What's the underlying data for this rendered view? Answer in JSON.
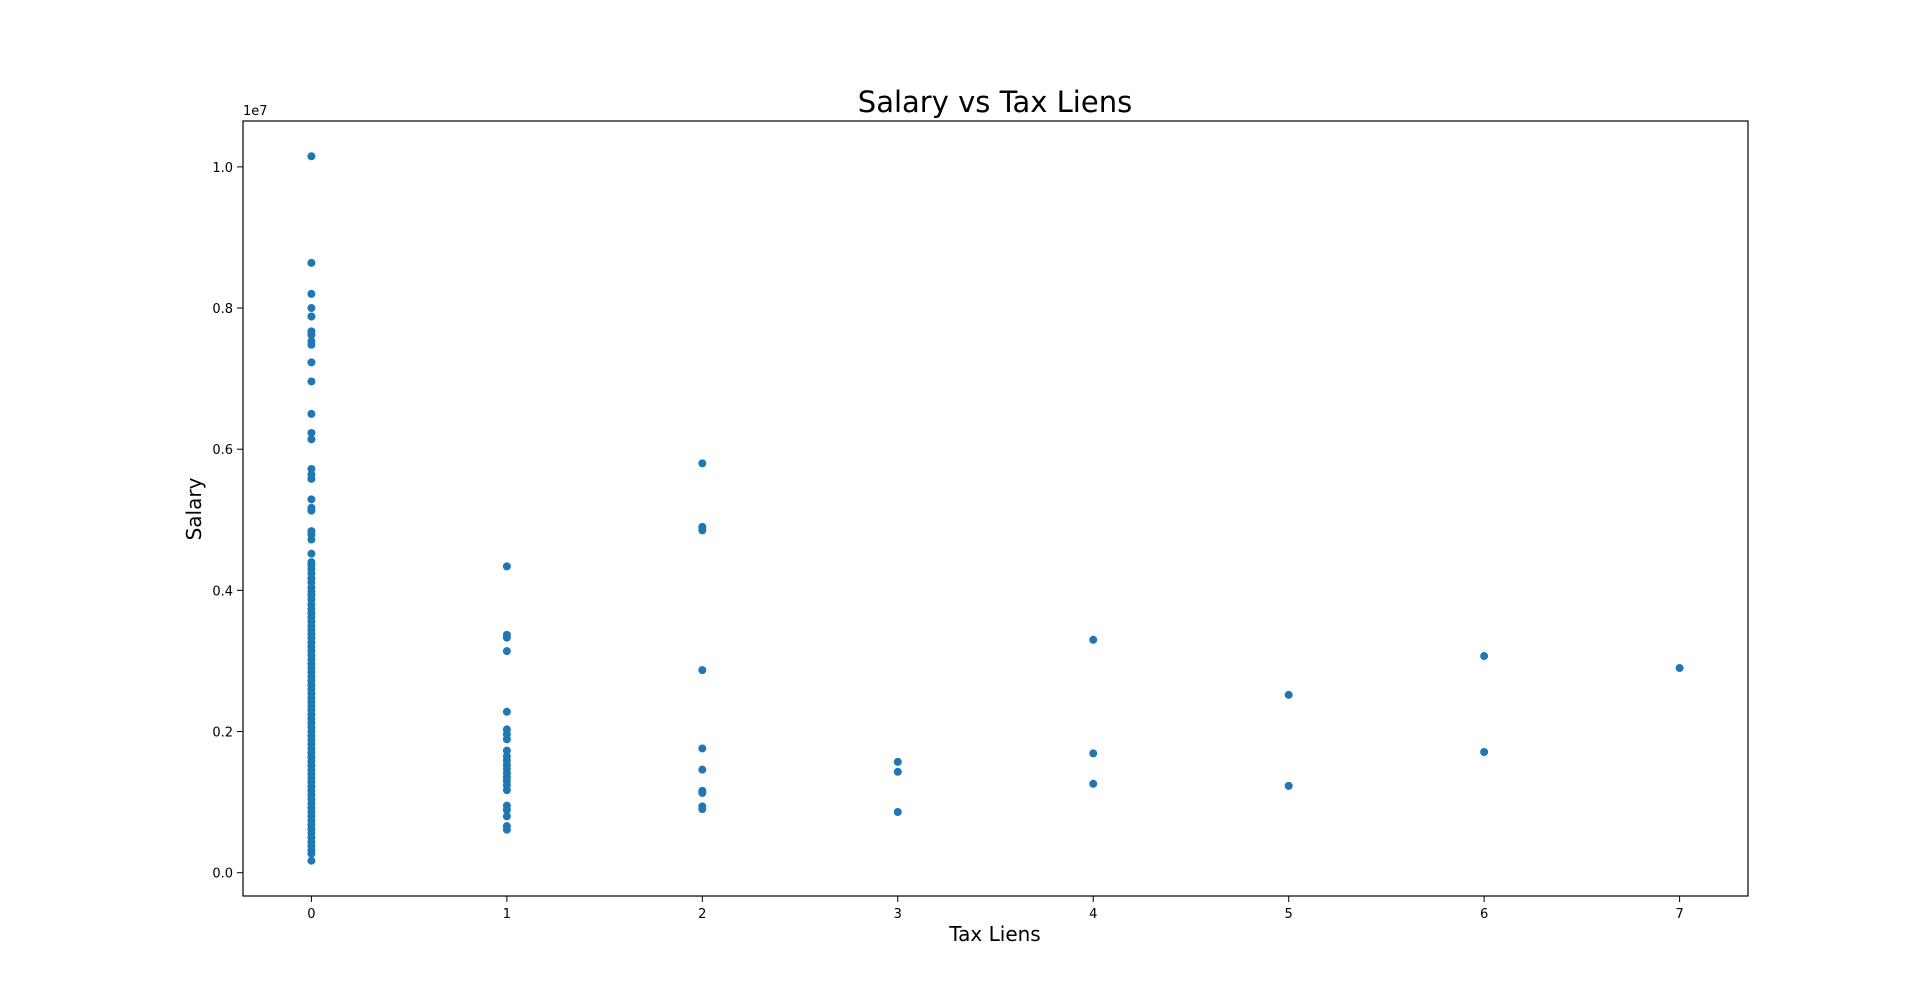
{
  "chart_data": {
    "type": "scatter",
    "title": "Salary vs Tax Liens",
    "xlabel": "Tax Liens",
    "ylabel": "Salary",
    "y_offset_text": "1e7",
    "xlim": [
      -0.35,
      7.35
    ],
    "ylim": [
      -330000,
      10650000
    ],
    "x_ticks": [
      0,
      1,
      2,
      3,
      4,
      5,
      6,
      7
    ],
    "x_tick_labels": [
      "0",
      "1",
      "2",
      "3",
      "4",
      "5",
      "6",
      "7"
    ],
    "y_ticks": [
      0,
      2000000,
      4000000,
      6000000,
      8000000,
      10000000
    ],
    "y_tick_labels": [
      "0.0",
      "0.2",
      "0.4",
      "0.6",
      "0.8",
      "1.0"
    ],
    "grid": false,
    "marker_color": "#1f77b4",
    "points": [
      {
        "x": 0,
        "y": 10150000
      },
      {
        "x": 0,
        "y": 8640000
      },
      {
        "x": 0,
        "y": 8200000
      },
      {
        "x": 0,
        "y": 8000000
      },
      {
        "x": 0,
        "y": 7880000
      },
      {
        "x": 0,
        "y": 7670000
      },
      {
        "x": 0,
        "y": 7620000
      },
      {
        "x": 0,
        "y": 7530000
      },
      {
        "x": 0,
        "y": 7480000
      },
      {
        "x": 0,
        "y": 7230000
      },
      {
        "x": 0,
        "y": 6960000
      },
      {
        "x": 0,
        "y": 6500000
      },
      {
        "x": 0,
        "y": 6230000
      },
      {
        "x": 0,
        "y": 6140000
      },
      {
        "x": 0,
        "y": 5720000
      },
      {
        "x": 0,
        "y": 5640000
      },
      {
        "x": 0,
        "y": 5580000
      },
      {
        "x": 0,
        "y": 5290000
      },
      {
        "x": 0,
        "y": 5170000
      },
      {
        "x": 0,
        "y": 5130000
      },
      {
        "x": 0,
        "y": 4840000
      },
      {
        "x": 0,
        "y": 4790000
      },
      {
        "x": 0,
        "y": 4720000
      },
      {
        "x": 0,
        "y": 4520000
      },
      {
        "x": 0,
        "y": 4400000
      },
      {
        "x": 0,
        "y": 4360000
      },
      {
        "x": 0,
        "y": 4300000
      },
      {
        "x": 0,
        "y": 4240000
      },
      {
        "x": 0,
        "y": 4170000
      },
      {
        "x": 0,
        "y": 4110000
      },
      {
        "x": 0,
        "y": 4040000
      },
      {
        "x": 0,
        "y": 3980000
      },
      {
        "x": 0,
        "y": 3930000
      },
      {
        "x": 0,
        "y": 3870000
      },
      {
        "x": 0,
        "y": 3800000
      },
      {
        "x": 0,
        "y": 3740000
      },
      {
        "x": 0,
        "y": 3680000
      },
      {
        "x": 0,
        "y": 3620000
      },
      {
        "x": 0,
        "y": 3560000
      },
      {
        "x": 0,
        "y": 3500000
      },
      {
        "x": 0,
        "y": 3440000
      },
      {
        "x": 0,
        "y": 3380000
      },
      {
        "x": 0,
        "y": 3320000
      },
      {
        "x": 0,
        "y": 3260000
      },
      {
        "x": 0,
        "y": 3200000
      },
      {
        "x": 0,
        "y": 3140000
      },
      {
        "x": 0,
        "y": 3080000
      },
      {
        "x": 0,
        "y": 3020000
      },
      {
        "x": 0,
        "y": 2960000
      },
      {
        "x": 0,
        "y": 2900000
      },
      {
        "x": 0,
        "y": 2840000
      },
      {
        "x": 0,
        "y": 2780000
      },
      {
        "x": 0,
        "y": 2720000
      },
      {
        "x": 0,
        "y": 2660000
      },
      {
        "x": 0,
        "y": 2600000
      },
      {
        "x": 0,
        "y": 2540000
      },
      {
        "x": 0,
        "y": 2480000
      },
      {
        "x": 0,
        "y": 2420000
      },
      {
        "x": 0,
        "y": 2360000
      },
      {
        "x": 0,
        "y": 2300000
      },
      {
        "x": 0,
        "y": 2240000
      },
      {
        "x": 0,
        "y": 2180000
      },
      {
        "x": 0,
        "y": 2120000
      },
      {
        "x": 0,
        "y": 2060000
      },
      {
        "x": 0,
        "y": 2000000
      },
      {
        "x": 0,
        "y": 1940000
      },
      {
        "x": 0,
        "y": 1880000
      },
      {
        "x": 0,
        "y": 1820000
      },
      {
        "x": 0,
        "y": 1760000
      },
      {
        "x": 0,
        "y": 1700000
      },
      {
        "x": 0,
        "y": 1640000
      },
      {
        "x": 0,
        "y": 1580000
      },
      {
        "x": 0,
        "y": 1520000
      },
      {
        "x": 0,
        "y": 1460000
      },
      {
        "x": 0,
        "y": 1400000
      },
      {
        "x": 0,
        "y": 1340000
      },
      {
        "x": 0,
        "y": 1280000
      },
      {
        "x": 0,
        "y": 1220000
      },
      {
        "x": 0,
        "y": 1160000
      },
      {
        "x": 0,
        "y": 1100000
      },
      {
        "x": 0,
        "y": 1040000
      },
      {
        "x": 0,
        "y": 980000
      },
      {
        "x": 0,
        "y": 920000
      },
      {
        "x": 0,
        "y": 860000
      },
      {
        "x": 0,
        "y": 800000
      },
      {
        "x": 0,
        "y": 740000
      },
      {
        "x": 0,
        "y": 680000
      },
      {
        "x": 0,
        "y": 620000
      },
      {
        "x": 0,
        "y": 560000
      },
      {
        "x": 0,
        "y": 500000
      },
      {
        "x": 0,
        "y": 440000
      },
      {
        "x": 0,
        "y": 380000
      },
      {
        "x": 0,
        "y": 320000
      },
      {
        "x": 0,
        "y": 270000
      },
      {
        "x": 0,
        "y": 170000
      },
      {
        "x": 1,
        "y": 4340000
      },
      {
        "x": 1,
        "y": 3370000
      },
      {
        "x": 1,
        "y": 3330000
      },
      {
        "x": 1,
        "y": 3140000
      },
      {
        "x": 1,
        "y": 2280000
      },
      {
        "x": 1,
        "y": 2030000
      },
      {
        "x": 1,
        "y": 1960000
      },
      {
        "x": 1,
        "y": 1890000
      },
      {
        "x": 1,
        "y": 1730000
      },
      {
        "x": 1,
        "y": 1650000
      },
      {
        "x": 1,
        "y": 1590000
      },
      {
        "x": 1,
        "y": 1530000
      },
      {
        "x": 1,
        "y": 1470000
      },
      {
        "x": 1,
        "y": 1410000
      },
      {
        "x": 1,
        "y": 1350000
      },
      {
        "x": 1,
        "y": 1300000
      },
      {
        "x": 1,
        "y": 1240000
      },
      {
        "x": 1,
        "y": 1170000
      },
      {
        "x": 1,
        "y": 950000
      },
      {
        "x": 1,
        "y": 890000
      },
      {
        "x": 1,
        "y": 800000
      },
      {
        "x": 1,
        "y": 660000
      },
      {
        "x": 1,
        "y": 610000
      },
      {
        "x": 2,
        "y": 5800000
      },
      {
        "x": 2,
        "y": 4900000
      },
      {
        "x": 2,
        "y": 4850000
      },
      {
        "x": 2,
        "y": 2870000
      },
      {
        "x": 2,
        "y": 1760000
      },
      {
        "x": 2,
        "y": 1460000
      },
      {
        "x": 2,
        "y": 1160000
      },
      {
        "x": 2,
        "y": 1130000
      },
      {
        "x": 2,
        "y": 940000
      },
      {
        "x": 2,
        "y": 900000
      },
      {
        "x": 3,
        "y": 1570000
      },
      {
        "x": 3,
        "y": 1430000
      },
      {
        "x": 3,
        "y": 860000
      },
      {
        "x": 4,
        "y": 3300000
      },
      {
        "x": 4,
        "y": 1690000
      },
      {
        "x": 4,
        "y": 1260000
      },
      {
        "x": 5,
        "y": 2520000
      },
      {
        "x": 5,
        "y": 1230000
      },
      {
        "x": 6,
        "y": 3070000
      },
      {
        "x": 6,
        "y": 1710000
      },
      {
        "x": 7,
        "y": 2900000
      }
    ]
  }
}
